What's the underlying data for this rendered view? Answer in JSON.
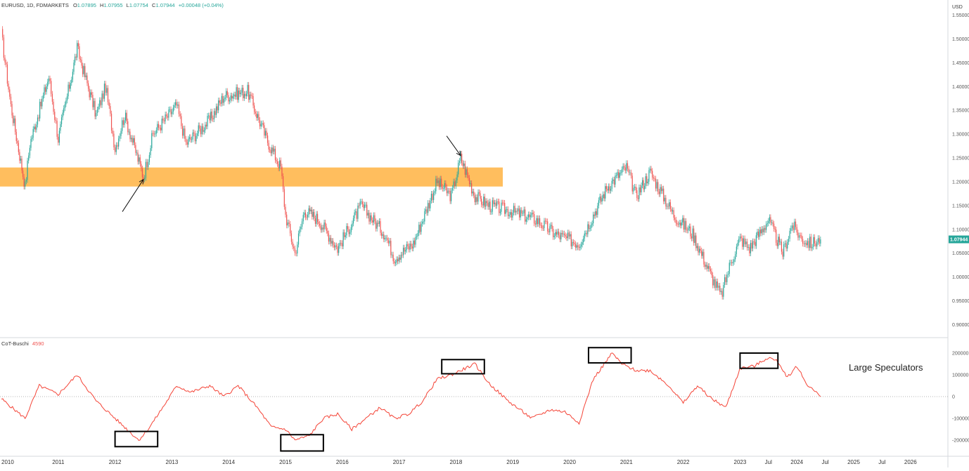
{
  "header": {
    "symbol": "EURUSD, 1D, FDMARKETS",
    "o_label": "O",
    "o_value": "1.07895",
    "h_label": "H",
    "h_value": "1.07955",
    "l_label": "L",
    "l_value": "1.07754",
    "c_label": "C",
    "c_value": "1.07944",
    "change": "+0.00048 (+0.04%)"
  },
  "price_axis": {
    "currency": "USD",
    "ticks": [
      "1.55000",
      "1.50000",
      "1.45000",
      "1.40000",
      "1.35000",
      "1.30000",
      "1.25000",
      "1.20000",
      "1.15000",
      "1.10000",
      "1.05000",
      "1.00000",
      "0.95000",
      "0.90000"
    ],
    "last_price_label": "1.07944"
  },
  "indicator": {
    "name": "CoT-Buschi",
    "value": "4590",
    "ticks": [
      "200000",
      "100000",
      "0",
      "-100000",
      "-200000"
    ],
    "annotation": "Large Speculators"
  },
  "time_axis": {
    "labels": [
      "2010",
      "2011",
      "2012",
      "2013",
      "2014",
      "2015",
      "2016",
      "2017",
      "2018",
      "2019",
      "2020",
      "2021",
      "2022",
      "2023",
      "Jul",
      "2024",
      "Jul",
      "2025",
      "Jul",
      "2026"
    ]
  },
  "colors": {
    "up_candle": "#26a69a",
    "down_candle": "#ef5350",
    "zone_fill": "#ffb74d",
    "indicator_line": "#f44336",
    "price_label_bg": "#26a69a",
    "axis_text": "#555555"
  },
  "chart_data": [
    {
      "type": "line",
      "series": [
        {
          "name": "EURUSD, 1D, FDMARKETS",
          "x": [
            "2010-01",
            "2010-03",
            "2010-06",
            "2010-07",
            "2010-11",
            "2011-01",
            "2011-05",
            "2011-09",
            "2011-11",
            "2012-01",
            "2012-03",
            "2012-07",
            "2012-09",
            "2013-02",
            "2013-04",
            "2013-09",
            "2013-12",
            "2014-05",
            "2014-09",
            "2014-12",
            "2015-01",
            "2015-03",
            "2015-05",
            "2015-08",
            "2015-12",
            "2016-05",
            "2016-10",
            "2016-12",
            "2017-04",
            "2017-09",
            "2017-12",
            "2018-02",
            "2018-05",
            "2018-08",
            "2018-12",
            "2019-06",
            "2019-10",
            "2020-03",
            "2020-06",
            "2020-09",
            "2021-01",
            "2021-03",
            "2021-06",
            "2021-11",
            "2022-03",
            "2022-07",
            "2022-09",
            "2022-11",
            "2023-01",
            "2023-03",
            "2023-07",
            "2023-10",
            "2023-12",
            "2024-02",
            "2024-04",
            "2024-06"
          ],
          "values": [
            1.51,
            1.36,
            1.19,
            1.28,
            1.42,
            1.29,
            1.48,
            1.34,
            1.4,
            1.27,
            1.34,
            1.21,
            1.3,
            1.36,
            1.28,
            1.33,
            1.38,
            1.39,
            1.29,
            1.23,
            1.13,
            1.05,
            1.14,
            1.12,
            1.06,
            1.15,
            1.09,
            1.04,
            1.07,
            1.2,
            1.17,
            1.25,
            1.17,
            1.15,
            1.14,
            1.12,
            1.09,
            1.07,
            1.13,
            1.19,
            1.23,
            1.17,
            1.22,
            1.13,
            1.09,
            1.0,
            0.96,
            1.03,
            1.08,
            1.06,
            1.12,
            1.05,
            1.11,
            1.08,
            1.07,
            1.079
          ]
        }
      ],
      "ylim": [
        0.88,
        1.57
      ],
      "title": "",
      "xlabel": "",
      "ylabel": "USD",
      "zones": [
        {
          "ymin": 1.19,
          "ymax": 1.23
        }
      ],
      "annotations": [
        {
          "type": "arrow",
          "date": "2012-07",
          "value": 1.205,
          "direction": "up"
        },
        {
          "type": "arrow",
          "date": "2018-02",
          "value": 1.255,
          "direction": "down"
        }
      ]
    },
    {
      "type": "line",
      "series": [
        {
          "name": "CoT-Buschi",
          "x": [
            "2010-01",
            "2010-06",
            "2010-09",
            "2011-01",
            "2011-05",
            "2011-09",
            "2012-01",
            "2012-06",
            "2012-08",
            "2012-12",
            "2013-02",
            "2013-05",
            "2013-09",
            "2013-12",
            "2014-03",
            "2014-07",
            "2014-10",
            "2015-01",
            "2015-03",
            "2015-06",
            "2015-09",
            "2015-12",
            "2016-03",
            "2016-06",
            "2016-09",
            "2016-12",
            "2017-03",
            "2017-06",
            "2017-09",
            "2017-12",
            "2018-02",
            "2018-05",
            "2018-08",
            "2018-12",
            "2019-05",
            "2019-09",
            "2019-12",
            "2020-03",
            "2020-06",
            "2020-08",
            "2020-10",
            "2020-12",
            "2021-03",
            "2021-06",
            "2021-10",
            "2022-01",
            "2022-04",
            "2022-07",
            "2022-10",
            "2023-01",
            "2023-04",
            "2023-07",
            "2023-09",
            "2023-11",
            "2024-01",
            "2024-03",
            "2024-06"
          ],
          "values": [
            -10000,
            -100000,
            50000,
            10000,
            100000,
            -20000,
            -100000,
            -200000,
            -150000,
            -20000,
            50000,
            20000,
            50000,
            0,
            50000,
            -50000,
            -140000,
            -150000,
            -200000,
            -180000,
            -100000,
            -80000,
            -150000,
            -100000,
            -50000,
            -100000,
            -80000,
            -20000,
            80000,
            100000,
            120000,
            150000,
            60000,
            -20000,
            -100000,
            -60000,
            -70000,
            -120000,
            80000,
            140000,
            200000,
            150000,
            120000,
            120000,
            50000,
            -30000,
            50000,
            -10000,
            -50000,
            130000,
            140000,
            180000,
            160000,
            90000,
            140000,
            60000,
            0
          ]
        }
      ],
      "ylim": [
        -250000,
        250000
      ],
      "ylabel": "",
      "xlabel": "",
      "highlight_boxes": [
        {
          "x_start": "2012-01",
          "x_end": "2012-10",
          "y_min": -230000,
          "y_max": -160000
        },
        {
          "x_start": "2014-12",
          "x_end": "2015-09",
          "y_min": -250000,
          "y_max": -175000
        },
        {
          "x_start": "2017-10",
          "x_end": "2018-07",
          "y_min": 105000,
          "y_max": 170000
        },
        {
          "x_start": "2020-05",
          "x_end": "2021-02",
          "y_min": 155000,
          "y_max": 225000
        },
        {
          "x_start": "2023-01",
          "x_end": "2023-09",
          "y_min": 130000,
          "y_max": 200000
        }
      ]
    }
  ]
}
